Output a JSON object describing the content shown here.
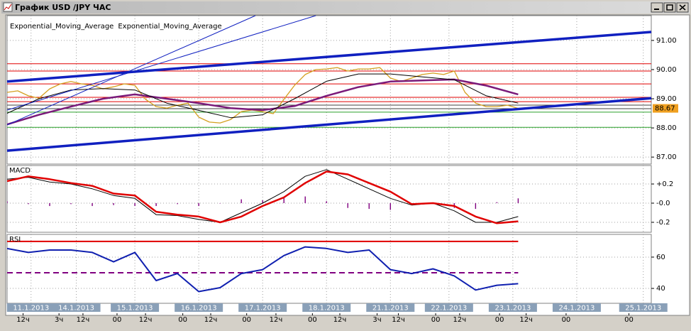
{
  "window": {
    "title": "График USD /JPY  ЧАС"
  },
  "chart_data": [
    {
      "type": "line",
      "xlim": [
        0,
        242
      ],
      "ylim": [
        86.76,
        91.85
      ],
      "yticks": [
        {
          "value": 87,
          "label": "87.00"
        },
        {
          "value": 88,
          "label": "88.00"
        },
        {
          "value": 89,
          "label": "89.00"
        },
        {
          "value": 90,
          "label": "90.00"
        },
        {
          "value": 91,
          "label": "91.00"
        }
      ],
      "grid": true,
      "last_value_marker": true,
      "series": [
        {
          "color": "#d4a020",
          "line_width": 1.3,
          "x": [
            0,
            4,
            8,
            12,
            16,
            20,
            24,
            28,
            32,
            36,
            40,
            44,
            48,
            52,
            56,
            60,
            64,
            68,
            72,
            76,
            80,
            84,
            88,
            92,
            96,
            100,
            104,
            108,
            112,
            116,
            120,
            124,
            128,
            132,
            136,
            140,
            144,
            148,
            152,
            156,
            160,
            164,
            168,
            172,
            176,
            180,
            184,
            188,
            192
          ],
          "values": [
            89.22,
            89.27,
            89.1,
            89.02,
            89.34,
            89.51,
            89.59,
            89.51,
            89.46,
            89.34,
            89.41,
            89.51,
            89.46,
            88.98,
            88.73,
            88.68,
            88.78,
            88.85,
            88.37,
            88.2,
            88.17,
            88.29,
            88.56,
            88.61,
            88.56,
            88.49,
            88.98,
            89.46,
            89.83,
            90.0,
            90.02,
            90.07,
            89.95,
            90.02,
            90.02,
            90.07,
            89.71,
            89.59,
            89.71,
            89.83,
            89.88,
            89.83,
            89.95,
            89.22,
            88.85,
            88.73,
            88.73,
            88.78,
            88.67
          ]
        },
        {
          "name": "Exponential_Moving_Average",
          "color": "#7a1a7a",
          "line_width": 2.5,
          "x": [
            0,
            12,
            24,
            36,
            48,
            60,
            72,
            84,
            96,
            108,
            120,
            132,
            144,
            156,
            168,
            180,
            192
          ],
          "values": [
            88.12,
            88.45,
            88.73,
            89.0,
            89.15,
            89.0,
            88.85,
            88.68,
            88.61,
            88.75,
            89.1,
            89.4,
            89.59,
            89.63,
            89.66,
            89.45,
            89.15
          ]
        },
        {
          "name": "Exponential_Moving_Average",
          "color": "#000000",
          "line_width": 1,
          "x": [
            0,
            12,
            24,
            36,
            48,
            60,
            72,
            84,
            96,
            108,
            120,
            132,
            144,
            156,
            168,
            180,
            192
          ],
          "values": [
            88.5,
            89.0,
            89.3,
            89.35,
            89.3,
            88.85,
            88.6,
            88.35,
            88.45,
            89.0,
            89.6,
            89.85,
            89.85,
            89.75,
            89.65,
            89.1,
            88.85
          ]
        }
      ],
      "levels": [
        {
          "value": 90.2,
          "color": "#e00000"
        },
        {
          "value": 89.95,
          "color": "#e00000"
        },
        {
          "value": 89.51,
          "color": "#e00000"
        },
        {
          "value": 89.05,
          "color": "#e00000"
        },
        {
          "value": 88.9,
          "color": "#e00000"
        },
        {
          "value": 88.78,
          "color": "#404040"
        },
        {
          "value": 88.66,
          "color": "#404040"
        },
        {
          "value": 88.54,
          "color": "#2aa02a"
        },
        {
          "value": 88.02,
          "color": "#2aa02a"
        }
      ],
      "trendlines": [
        {
          "x": [
            0,
            242
          ],
          "values": [
            87.22,
            89.02
          ],
          "color": "#1020c0",
          "line_width": 3.5
        },
        {
          "x": [
            0,
            242
          ],
          "values": [
            89.59,
            91.29
          ],
          "color": "#1020c0",
          "line_width": 3.5
        },
        {
          "x": [
            0,
            93.3
          ],
          "values": [
            88.1,
            91.85
          ],
          "color": "#1020c0",
          "line_width": 1
        },
        {
          "x": [
            0,
            116
          ],
          "values": [
            88.61,
            91.85
          ],
          "color": "#1020c0",
          "line_width": 1
        }
      ]
    },
    {
      "type": "line",
      "title": "MACD",
      "xlim": [
        0,
        242
      ],
      "ylim": [
        -0.304,
        0.393
      ],
      "yticks": [
        -0.2,
        {
          "value": 0,
          "label": "-0.0"
        },
        {
          "value": 0.2,
          "label": "+0.2"
        }
      ],
      "grid": true,
      "series": [
        {
          "type": "bar",
          "color": "#800080",
          "x": [
            0,
            8,
            16,
            24,
            32,
            40,
            48,
            56,
            64,
            72,
            80,
            88,
            96,
            104,
            112,
            120,
            128,
            136,
            144,
            152,
            160,
            168,
            176,
            184,
            192
          ],
          "values": [
            0.02,
            -0.01,
            -0.03,
            -0.01,
            -0.03,
            -0.02,
            -0.03,
            -0.03,
            -0.01,
            -0.03,
            0,
            0.04,
            0.03,
            0.06,
            0.07,
            0.02,
            -0.05,
            -0.06,
            -0.07,
            -0.01,
            0,
            -0.05,
            -0.06,
            0.01,
            0.05
          ]
        },
        {
          "color": "#000000",
          "line_width": 1,
          "x": [
            0,
            8,
            16,
            24,
            32,
            40,
            48,
            56,
            64,
            72,
            80,
            88,
            96,
            104,
            112,
            120,
            128,
            136,
            144,
            152,
            160,
            168,
            176,
            184,
            192
          ],
          "values": [
            0.25,
            0.27,
            0.22,
            0.2,
            0.15,
            0.08,
            0.05,
            -0.12,
            -0.13,
            -0.17,
            -0.2,
            -0.1,
            0.0,
            0.12,
            0.28,
            0.35,
            0.25,
            0.15,
            0.05,
            -0.02,
            0.0,
            -0.08,
            -0.2,
            -0.2,
            -0.14
          ]
        },
        {
          "color": "#e00000",
          "line_width": 2.5,
          "x": [
            0,
            8,
            16,
            24,
            32,
            40,
            48,
            56,
            64,
            72,
            80,
            88,
            96,
            104,
            112,
            120,
            128,
            136,
            144,
            152,
            160,
            168,
            176,
            184,
            192
          ],
          "values": [
            0.23,
            0.28,
            0.25,
            0.21,
            0.18,
            0.1,
            0.08,
            -0.09,
            -0.12,
            -0.14,
            -0.2,
            -0.14,
            -0.03,
            0.06,
            0.21,
            0.33,
            0.3,
            0.21,
            0.12,
            -0.01,
            0.0,
            -0.03,
            -0.14,
            -0.21,
            -0.19
          ]
        }
      ]
    },
    {
      "type": "line",
      "title": "RSI",
      "xlim": [
        0,
        242
      ],
      "ylim": [
        30.5,
        74.5
      ],
      "yticks": [
        40,
        60
      ],
      "grid": true,
      "series": [
        {
          "color": "#1020b0",
          "line_width": 2,
          "x": [
            0,
            8,
            16,
            24,
            32,
            40,
            48,
            56,
            64,
            72,
            80,
            88,
            96,
            104,
            112,
            120,
            128,
            136,
            144,
            152,
            160,
            168,
            176,
            184,
            192
          ],
          "values": [
            65.5,
            63,
            64.5,
            64.5,
            63,
            57,
            63,
            45,
            49.5,
            38,
            40.5,
            49.5,
            52,
            61,
            66.5,
            65.5,
            63,
            64.5,
            52,
            49.5,
            52.5,
            48,
            39,
            42,
            43
          ]
        }
      ],
      "levels": [
        {
          "value": 70,
          "color": "#e00000"
        },
        {
          "value": 50,
          "color": "#800080",
          "dash": true
        }
      ],
      "xticks": [
        {
          "value": 9,
          "label": "11.1.2013"
        },
        {
          "value": 26,
          "label": "14.1.2013"
        },
        {
          "value": 48,
          "label": "15.1.2013"
        },
        {
          "value": 72,
          "label": "16.1.2013"
        },
        {
          "value": 96,
          "label": "17.1.2013"
        },
        {
          "value": 120,
          "label": "18.1.2013"
        },
        {
          "value": 144,
          "label": "21.1.2013"
        },
        {
          "value": 166,
          "label": "22.1.2013"
        },
        {
          "value": 190,
          "label": "23.1.2013"
        },
        {
          "value": 214,
          "label": "24.1.2013"
        },
        {
          "value": 239,
          "label": "25.1.2013"
        }
      ],
      "hour_ticks": [
        {
          "value": 6,
          "label": "12ч"
        },
        {
          "value": 19.5,
          "label": "3ч"
        },
        {
          "value": 28.5,
          "label": "12ч"
        },
        {
          "value": 41.3,
          "label": "00"
        },
        {
          "value": 52,
          "label": "12ч"
        },
        {
          "value": 66,
          "label": "00"
        },
        {
          "value": 76.5,
          "label": "12ч"
        },
        {
          "value": 90,
          "label": "00"
        },
        {
          "value": 101,
          "label": "12ч"
        },
        {
          "value": 114.7,
          "label": "00"
        },
        {
          "value": 125,
          "label": "12ч"
        },
        {
          "value": 139,
          "label": "3ч"
        },
        {
          "value": 147,
          "label": "12ч"
        },
        {
          "value": 161,
          "label": "00"
        },
        {
          "value": 170,
          "label": "12ч"
        },
        {
          "value": 185,
          "label": "00"
        },
        {
          "value": 195,
          "label": "12ч"
        },
        {
          "value": 210,
          "label": "00"
        },
        {
          "value": 233.6,
          "label": "00"
        }
      ]
    }
  ]
}
